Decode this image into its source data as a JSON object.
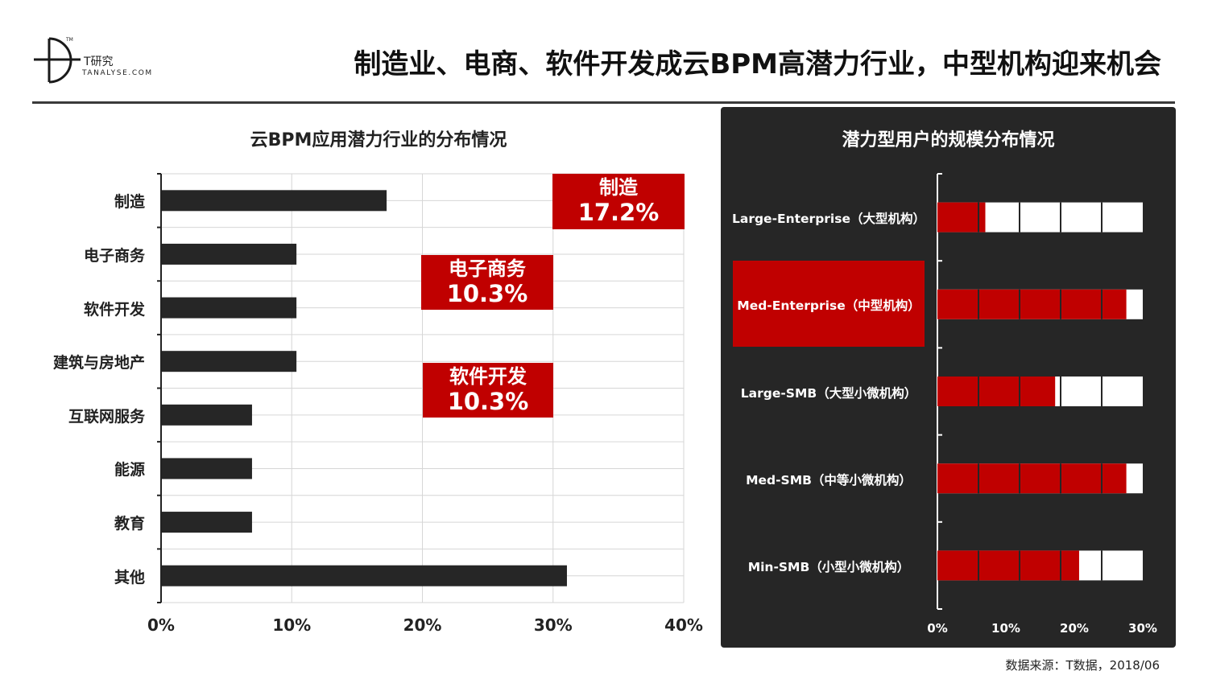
{
  "header": {
    "title": "制造业、电商、软件开发成云BPM高潜力行业，中型机构迎来机会",
    "logo_name": "T研究",
    "logo_url": "TANALYSE.COM",
    "logo_tm": "TM"
  },
  "chart_data": [
    {
      "type": "bar",
      "orientation": "horizontal",
      "title": "云BPM应用潜力行业的分布情况",
      "categories": [
        "制造",
        "电子商务",
        "软件开发",
        "建筑与房地产",
        "互联网服务",
        "能源",
        "教育",
        "其他"
      ],
      "values": [
        17.2,
        10.3,
        10.3,
        10.3,
        6.9,
        6.9,
        6.9,
        31.0
      ],
      "unit": "%",
      "xlim": [
        0,
        40
      ],
      "x_ticks": [
        "0%",
        "10%",
        "20%",
        "30%",
        "40%"
      ],
      "grid": true,
      "bar_color": "#262626",
      "callouts": [
        {
          "name": "制造",
          "value": "17.2%"
        },
        {
          "name": "电子商务",
          "value": "10.3%"
        },
        {
          "name": "软件开发",
          "value": "10.3%"
        }
      ],
      "callout_color": "#c00000"
    },
    {
      "type": "bar",
      "orientation": "horizontal",
      "title": "潜力型用户的规模分布情况",
      "categories": [
        "Large-Enterprise（大型机构）",
        "Med-Enterprise（中型机构）",
        "Large-SMB（大型小微机构）",
        "Med-SMB（中等小微机构）",
        "Min-SMB（小型小微机构）"
      ],
      "values": [
        7,
        27.6,
        17.2,
        27.6,
        20.7
      ],
      "unit": "%",
      "xlim": [
        0,
        30
      ],
      "x_ticks": [
        "0%",
        "10%",
        "20%",
        "30%"
      ],
      "highlighted_category": "Med-Enterprise（中型机构）",
      "fill_color": "#c00000",
      "empty_color": "#ffffff",
      "background": "#262626"
    }
  ],
  "footer": {
    "source": "数据来源：T数据，2018/06"
  }
}
